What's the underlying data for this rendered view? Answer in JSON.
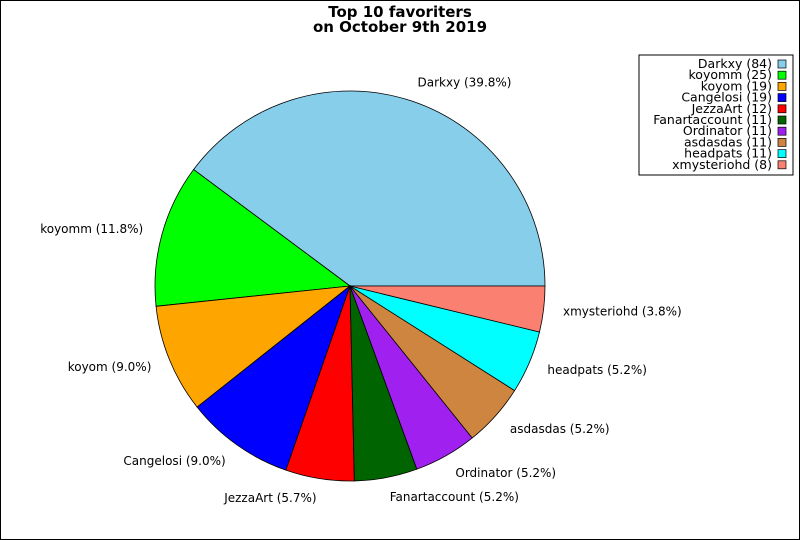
{
  "chart_data": {
    "type": "pie",
    "title": "Top 10 favoriters",
    "subtitle": "on October 9th 2019",
    "legend_position": "top-right",
    "slices": [
      {
        "name": "Darkxy",
        "count": 84,
        "percent": 39.8,
        "color": "#87CEEB",
        "label": "Darkxy (39.8%)",
        "legend": "Darkxy (84)"
      },
      {
        "name": "koyomm",
        "count": 25,
        "percent": 11.8,
        "color": "#00FF00",
        "label": "koyomm (11.8%)",
        "legend": "koyomm (25)"
      },
      {
        "name": "koyom",
        "count": 19,
        "percent": 9.0,
        "color": "#FFA500",
        "label": "koyom (9.0%)",
        "legend": "koyom (19)"
      },
      {
        "name": "Cangelosi",
        "count": 19,
        "percent": 9.0,
        "color": "#0000FF",
        "label": "Cangelosi (9.0%)",
        "legend": "Cangelosi (19)"
      },
      {
        "name": "JezzaArt",
        "count": 12,
        "percent": 5.7,
        "color": "#FF0000",
        "label": "JezzaArt (5.7%)",
        "legend": "JezzaArt (12)"
      },
      {
        "name": "Fanartaccount",
        "count": 11,
        "percent": 5.2,
        "color": "#006400",
        "label": "Fanartaccount (5.2%)",
        "legend": "Fanartaccount (11)"
      },
      {
        "name": "Ordinator",
        "count": 11,
        "percent": 5.2,
        "color": "#A020F0",
        "label": "Ordinator (5.2%)",
        "legend": "Ordinator (11)"
      },
      {
        "name": "asdasdas",
        "count": 11,
        "percent": 5.2,
        "color": "#CD853F",
        "label": "asdasdas (5.2%)",
        "legend": "asdasdas (11)"
      },
      {
        "name": "headpats",
        "count": 11,
        "percent": 5.2,
        "color": "#00FFFF",
        "label": "headpats (5.2%)",
        "legend": "headpats (11)"
      },
      {
        "name": "xmysteriohd",
        "count": 8,
        "percent": 3.8,
        "color": "#FA8072",
        "label": "xmysteriohd (3.8%)",
        "legend": "xmysteriohd (8)"
      }
    ]
  }
}
